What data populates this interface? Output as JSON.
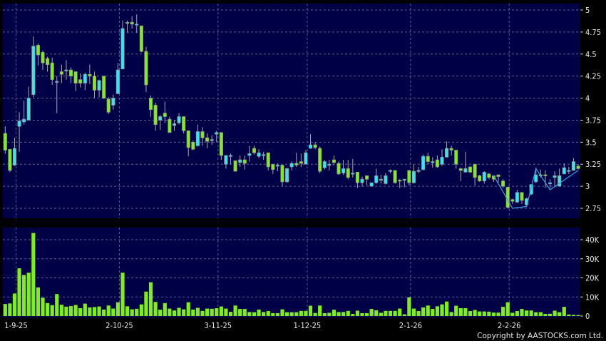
{
  "chart_data": [
    {
      "type": "candlestick",
      "panel": "price",
      "ylim": [
        2.75,
        5
      ],
      "yticks": [
        "5",
        "4.75",
        "4.5",
        "4.25",
        "4",
        "3.75",
        "3.5",
        "3.25",
        "3",
        "2.75"
      ],
      "ytick_values": [
        5,
        4.75,
        4.5,
        4.25,
        4,
        3.75,
        3.5,
        3.25,
        3,
        2.75
      ],
      "grid": true,
      "up_color": "#33e6f2",
      "down_color": "#80ee1c",
      "ohlc": [
        [
          3.6,
          3.68,
          3.37,
          3.41
        ],
        [
          3.42,
          3.42,
          3.16,
          3.18
        ],
        [
          3.24,
          3.55,
          3.23,
          3.43
        ],
        [
          3.68,
          3.84,
          3.39,
          3.74
        ],
        [
          3.73,
          3.97,
          3.7,
          3.76
        ],
        [
          3.75,
          4.13,
          3.75,
          4.0
        ],
        [
          4.04,
          4.7,
          4.01,
          4.59
        ],
        [
          4.6,
          4.62,
          4.37,
          4.49
        ],
        [
          4.52,
          4.54,
          4.32,
          4.4
        ],
        [
          4.45,
          4.47,
          4.3,
          4.38
        ],
        [
          4.4,
          4.46,
          4.15,
          4.21
        ],
        [
          4.18,
          4.25,
          3.83,
          4.19
        ],
        [
          4.3,
          4.38,
          4.17,
          4.27
        ],
        [
          4.32,
          4.43,
          4.21,
          4.32
        ],
        [
          4.32,
          4.35,
          4.17,
          4.25
        ],
        [
          4.3,
          4.3,
          4.08,
          4.17
        ],
        [
          4.21,
          4.28,
          4.12,
          4.17
        ],
        [
          4.17,
          4.29,
          4.09,
          4.27
        ],
        [
          4.27,
          4.38,
          4.16,
          4.25
        ],
        [
          4.25,
          4.3,
          4.0,
          4.09
        ],
        [
          4.09,
          4.21,
          4.01,
          4.2
        ],
        [
          4.25,
          4.25,
          3.99,
          4.0
        ],
        [
          3.99,
          4.01,
          3.82,
          3.84
        ],
        [
          3.92,
          4.04,
          3.87,
          4.0
        ],
        [
          4.05,
          4.4,
          4.05,
          4.32
        ],
        [
          4.33,
          4.88,
          4.33,
          4.79
        ],
        [
          4.85,
          4.88,
          4.74,
          4.86
        ],
        [
          4.86,
          4.93,
          4.79,
          4.84
        ],
        [
          4.84,
          4.95,
          4.74,
          4.84
        ],
        [
          4.82,
          4.82,
          4.52,
          4.53
        ],
        [
          4.53,
          4.58,
          4.07,
          4.15
        ],
        [
          4.0,
          4.03,
          3.79,
          3.87
        ],
        [
          3.92,
          3.95,
          3.63,
          3.7
        ],
        [
          3.75,
          3.81,
          3.64,
          3.79
        ],
        [
          3.83,
          3.96,
          3.72,
          3.79
        ],
        [
          3.76,
          3.79,
          3.61,
          3.61
        ],
        [
          3.69,
          3.75,
          3.63,
          3.71
        ],
        [
          3.72,
          3.83,
          3.7,
          3.79
        ],
        [
          3.79,
          3.79,
          3.6,
          3.63
        ],
        [
          3.63,
          3.63,
          3.34,
          3.44
        ],
        [
          3.5,
          3.52,
          3.41,
          3.42
        ],
        [
          3.46,
          3.7,
          3.45,
          3.62
        ],
        [
          3.62,
          3.67,
          3.46,
          3.55
        ],
        [
          3.55,
          3.6,
          3.43,
          3.51
        ],
        [
          3.53,
          3.58,
          3.47,
          3.53
        ],
        [
          3.59,
          3.63,
          3.5,
          3.61
        ],
        [
          3.61,
          3.61,
          3.3,
          3.35
        ],
        [
          3.25,
          3.35,
          3.2,
          3.35
        ],
        [
          3.35,
          3.37,
          3.25,
          3.35
        ],
        [
          3.29,
          3.29,
          3.17,
          3.17
        ],
        [
          3.27,
          3.35,
          3.22,
          3.3
        ],
        [
          3.3,
          3.35,
          3.19,
          3.26
        ],
        [
          3.35,
          3.46,
          3.28,
          3.37
        ],
        [
          3.43,
          3.46,
          3.36,
          3.38
        ],
        [
          3.34,
          3.42,
          3.32,
          3.38
        ],
        [
          3.36,
          3.39,
          3.3,
          3.36
        ],
        [
          3.38,
          3.38,
          3.18,
          3.22
        ],
        [
          3.25,
          3.25,
          3.14,
          3.19
        ],
        [
          3.23,
          3.26,
          3.17,
          3.24
        ],
        [
          3.24,
          3.24,
          3.0,
          3.05
        ],
        [
          3.05,
          3.21,
          3.04,
          3.2
        ],
        [
          3.22,
          3.28,
          3.18,
          3.26
        ],
        [
          3.26,
          3.38,
          3.22,
          3.24
        ],
        [
          3.28,
          3.37,
          3.22,
          3.26
        ],
        [
          3.25,
          3.41,
          3.25,
          3.38
        ],
        [
          3.43,
          3.59,
          3.43,
          3.47
        ],
        [
          3.47,
          3.5,
          3.42,
          3.44
        ],
        [
          3.43,
          3.45,
          3.15,
          3.17
        ],
        [
          3.21,
          3.3,
          3.19,
          3.28
        ],
        [
          3.25,
          3.3,
          3.18,
          3.25
        ],
        [
          3.3,
          3.35,
          3.24,
          3.27
        ],
        [
          3.26,
          3.28,
          3.13,
          3.14
        ],
        [
          3.15,
          3.3,
          3.13,
          3.2
        ],
        [
          3.2,
          3.3,
          3.08,
          3.1
        ],
        [
          3.15,
          3.31,
          3.1,
          3.15
        ],
        [
          3.16,
          3.16,
          2.98,
          3.04
        ],
        [
          3.04,
          3.11,
          3.0,
          3.08
        ],
        [
          3.12,
          3.12,
          3.01,
          3.08
        ],
        [
          3.0,
          3.04,
          3.0,
          3.04
        ],
        [
          3.04,
          3.2,
          3.03,
          3.12
        ],
        [
          3.08,
          3.13,
          3.03,
          3.08
        ],
        [
          3.03,
          3.15,
          3.02,
          3.12
        ],
        [
          3.17,
          3.19,
          3.15,
          3.18
        ],
        [
          3.18,
          3.18,
          3.03,
          3.04
        ],
        [
          3.07,
          3.08,
          2.98,
          3.06
        ],
        [
          3.08,
          3.08,
          2.99,
          3.08
        ],
        [
          3.18,
          3.18,
          3.01,
          3.04
        ],
        [
          3.04,
          3.25,
          3.03,
          3.17
        ],
        [
          3.17,
          3.22,
          3.15,
          3.18
        ],
        [
          3.19,
          3.36,
          3.18,
          3.34
        ],
        [
          3.34,
          3.38,
          3.25,
          3.28
        ],
        [
          3.28,
          3.33,
          3.21,
          3.28
        ],
        [
          3.3,
          3.35,
          3.21,
          3.22
        ],
        [
          3.25,
          3.42,
          3.23,
          3.33
        ],
        [
          3.33,
          3.51,
          3.33,
          3.43
        ],
        [
          3.43,
          3.46,
          3.35,
          3.41
        ],
        [
          3.41,
          3.41,
          3.2,
          3.25
        ],
        [
          3.2,
          3.21,
          3.06,
          3.18
        ],
        [
          3.16,
          3.39,
          3.16,
          3.2
        ],
        [
          3.22,
          3.22,
          3.15,
          3.16
        ],
        [
          3.25,
          3.25,
          3.01,
          3.1
        ],
        [
          3.12,
          3.13,
          3.05,
          3.06
        ],
        [
          3.06,
          3.17,
          3.03,
          3.16
        ],
        [
          3.14,
          3.15,
          3.08,
          3.1
        ],
        [
          3.12,
          3.12,
          3.05,
          3.08
        ],
        [
          3.13,
          3.13,
          3.04,
          3.11
        ],
        [
          3.06,
          3.08,
          2.98,
          3.0
        ],
        [
          2.99,
          2.99,
          2.75,
          2.76
        ],
        [
          2.85,
          2.86,
          2.8,
          2.83
        ],
        [
          2.82,
          2.96,
          2.81,
          2.93
        ],
        [
          2.93,
          2.93,
          2.8,
          2.84
        ],
        [
          2.79,
          2.87,
          2.77,
          2.86
        ],
        [
          2.91,
          3.02,
          2.9,
          3.02
        ],
        [
          3.05,
          3.21,
          3.04,
          3.13
        ],
        [
          3.13,
          3.19,
          3.1,
          3.13
        ],
        [
          3.13,
          3.18,
          2.98,
          3.12
        ],
        [
          3.04,
          3.08,
          2.98,
          3.04
        ],
        [
          3.1,
          3.17,
          2.99,
          3.12
        ],
        [
          3.0,
          3.2,
          3.0,
          3.12
        ],
        [
          3.14,
          3.26,
          3.14,
          3.21
        ],
        [
          3.18,
          3.22,
          3.14,
          3.18
        ],
        [
          3.18,
          3.32,
          3.18,
          3.28
        ],
        [
          3.23,
          3.25,
          3.19,
          3.2
        ]
      ],
      "overlay_line": {
        "color": "#3aa0e0",
        "points": [
          [
            104,
            3.12
          ],
          [
            108,
            2.75
          ],
          [
            111,
            2.77
          ],
          [
            113,
            3.2
          ],
          [
            116,
            2.96
          ],
          [
            122,
            3.18
          ]
        ]
      }
    },
    {
      "type": "bar",
      "panel": "volume",
      "ylim": [
        0,
        45000
      ],
      "yticks": [
        "40K",
        "30K",
        "20K",
        "10K",
        "0"
      ],
      "ytick_values": [
        40000,
        30000,
        20000,
        10000,
        0
      ],
      "grid": true,
      "color": "#80ee1c",
      "values": [
        6300,
        6600,
        11800,
        25000,
        21500,
        22700,
        43500,
        15000,
        9600,
        6800,
        5700,
        11500,
        5900,
        4900,
        5200,
        5800,
        4100,
        6500,
        4500,
        4700,
        5000,
        3400,
        5500,
        3900,
        7200,
        22700,
        5100,
        3500,
        3800,
        6100,
        12800,
        17700,
        7400,
        3300,
        6800,
        3900,
        2900,
        4300,
        3500,
        7200,
        3400,
        4300,
        2700,
        3900,
        3800,
        4100,
        5000,
        3900,
        2200,
        5500,
        3700,
        3700,
        2100,
        2000,
        3400,
        2100,
        2600,
        1500,
        1500,
        3500,
        2000,
        2000,
        2000,
        2700,
        2700,
        5400,
        1600,
        5500,
        1500,
        1700,
        3300,
        2100,
        2100,
        2700,
        1100,
        2800,
        1500,
        1500,
        3700,
        3000,
        1700,
        2700,
        2700,
        2700,
        3900,
        900,
        9800,
        3900,
        2600,
        4500,
        5500,
        3700,
        5100,
        6100,
        7600,
        2100,
        5400,
        4100,
        4100,
        2600,
        3200,
        2400,
        2400,
        2300,
        1800,
        1800,
        4800,
        7200,
        1700,
        2600,
        3700,
        2900,
        2900,
        2000,
        2000,
        1100,
        1200,
        2800,
        2000,
        4800,
        800,
        600,
        500
      ]
    }
  ],
  "x_axis": {
    "ticks": [
      {
        "label": "1-9-25",
        "index": 2
      },
      {
        "label": "2-10-25",
        "index": 24
      },
      {
        "label": "3-11-25",
        "index": 45
      },
      {
        "label": "1-12-25",
        "index": 64
      },
      {
        "label": "2-1-26",
        "index": 86
      },
      {
        "label": "2-2-26",
        "index": 107
      }
    ]
  },
  "colors": {
    "panel_bg": "#000046",
    "grid": "#5c5c96",
    "wick": "#a8a8a8",
    "border": "#909090"
  },
  "copyright": "Copyright by AASTOCKS.com Ltd."
}
